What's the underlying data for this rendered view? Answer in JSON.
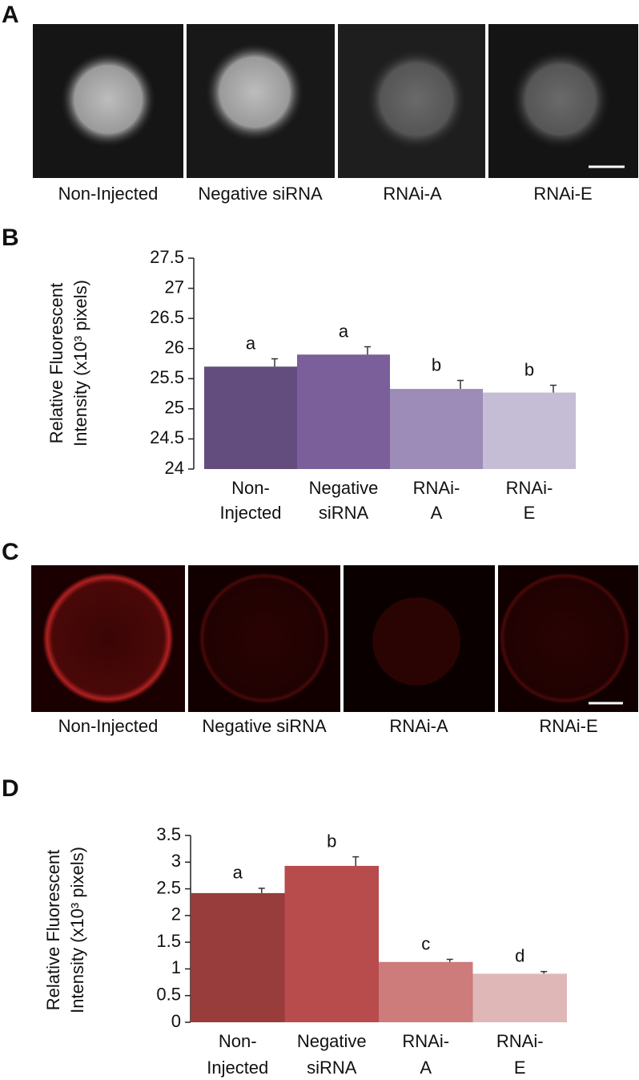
{
  "panels": [
    {
      "label": "A",
      "captions": [
        "Non-Injected",
        "Negative siRNA",
        "RNAi-A",
        "RNAi-E"
      ]
    },
    {
      "label": "C",
      "captions": [
        "Non-Injected",
        "Negative siRNA",
        "RNAi-A",
        "RNAi-E"
      ]
    }
  ],
  "chart_data": [
    {
      "type": "bar",
      "panel": "B",
      "y_label": [
        "Relative Fluorescent",
        "Intensity (x10³ pixels)"
      ],
      "categories": [
        "Non-Injected",
        "Negative siRNA",
        "RNAi-A",
        "RNAi-E"
      ],
      "values": [
        25.7,
        25.9,
        25.33,
        25.27
      ],
      "errors": [
        0.13,
        0.13,
        0.14,
        0.12
      ],
      "annotations": [
        "a",
        "a",
        "b",
        "b"
      ],
      "colors": [
        "#634d7e",
        "#7a5f9a",
        "#9d8cb8",
        "#c5bcd6"
      ],
      "ylim": [
        24,
        27.5
      ],
      "yticks": [
        24,
        24.5,
        25,
        25.5,
        26,
        26.5,
        27,
        27.5
      ],
      "grid": false
    },
    {
      "type": "bar",
      "panel": "D",
      "y_label": [
        "Relative Fluorescent",
        "Intensity (x10³ pixels)"
      ],
      "categories": [
        "Non-Injected",
        "Negative siRNA",
        "RNAi-A",
        "RNAi-E"
      ],
      "values": [
        2.42,
        2.93,
        1.13,
        0.91
      ],
      "errors": [
        0.09,
        0.17,
        0.05,
        0.04
      ],
      "annotations": [
        "a",
        "b",
        "c",
        "d"
      ],
      "colors": [
        "#983c3c",
        "#b84b4b",
        "#cd7b7b",
        "#e0b7b7"
      ],
      "ylim": [
        0,
        3.5
      ],
      "yticks": [
        0,
        0.5,
        1,
        1.5,
        2,
        2.5,
        3,
        3.5
      ],
      "grid": false
    }
  ]
}
